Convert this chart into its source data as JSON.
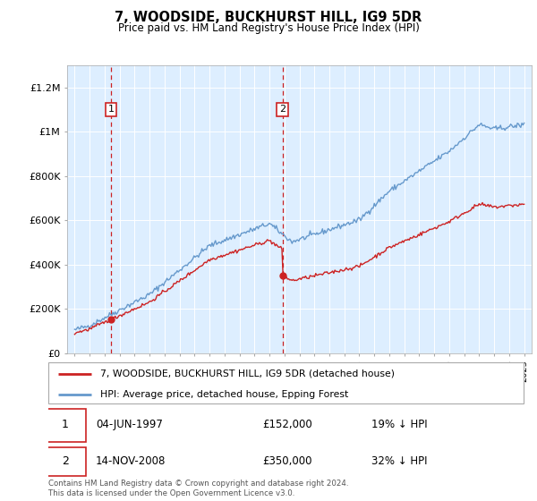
{
  "title": "7, WOODSIDE, BUCKHURST HILL, IG9 5DR",
  "subtitle": "Price paid vs. HM Land Registry's House Price Index (HPI)",
  "hpi_color": "#6699cc",
  "price_color": "#cc2222",
  "vline_color": "#cc2222",
  "bg_color": "#ddeeff",
  "ylim": [
    0,
    1300000
  ],
  "yticks": [
    0,
    200000,
    400000,
    600000,
    800000,
    1000000,
    1200000
  ],
  "ytick_labels": [
    "£0",
    "£200K",
    "£400K",
    "£600K",
    "£800K",
    "£1M",
    "£1.2M"
  ],
  "sale1_x": 1997.42,
  "sale1_y": 152000,
  "sale2_x": 2008.87,
  "sale2_y": 350000,
  "legend_line1": "7, WOODSIDE, BUCKHURST HILL, IG9 5DR (detached house)",
  "legend_line2": "HPI: Average price, detached house, Epping Forest",
  "footer": "Contains HM Land Registry data © Crown copyright and database right 2024.\nThis data is licensed under the Open Government Licence v3.0.",
  "xmin": 1994.5,
  "xmax": 2025.5
}
